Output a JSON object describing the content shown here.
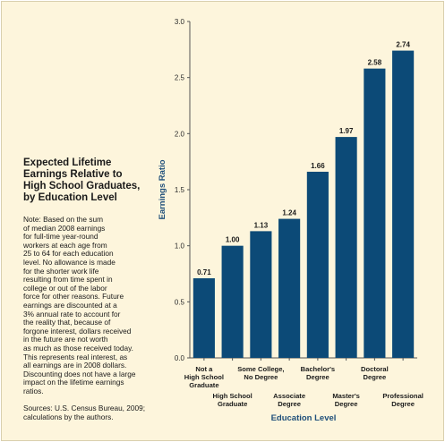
{
  "sidebar": {
    "title": "Expected Lifetime\nEarnings Relative to\nHigh School Graduates,\nby Education Level",
    "note": "Note: Based on the sum\nof median 2008 earnings\nfor full-time year-round\nworkers at each age from\n25 to 64 for each education\nlevel. No allowance is made\nfor the shorter work life\nresulting from time spent in\ncollege or out of the labor\nforce for other reasons. Future\nearnings are discounted at a\n3% annual rate to account for\nthe reality that, because of\nforgone interest, dollars received\nin the future are not worth\nas much as those received today.\nThis represents real interest, as\nall earnings are in 2008 dollars.\nDiscounting does not have a large\nimpact on the lifetime earnings\nratios.",
    "source": "Sources: U.S. Census Bureau, 2009;\ncalculations by the authors."
  },
  "chart_data": {
    "type": "bar",
    "xlabel": "Education Level",
    "ylabel": "Earnings Ratio",
    "ylim": [
      0,
      3.0
    ],
    "yticks": [
      "0.0",
      "0.5",
      "1.0",
      "1.5",
      "2.0",
      "2.5",
      "3.0"
    ],
    "categories": [
      "Not a\nHigh School\nGraduate",
      "High School\nGraduate",
      "Some College,\nNo Degree",
      "Associate\nDegree",
      "Bachelor's\nDegree",
      "Master's\nDegree",
      "Doctoral\nDegree",
      "Professional\nDegree"
    ],
    "values": [
      0.71,
      1.0,
      1.13,
      1.24,
      1.66,
      1.97,
      2.58,
      2.74
    ],
    "value_labels": [
      "0.71",
      "1.00",
      "1.13",
      "1.24",
      "1.66",
      "1.97",
      "2.58",
      "2.74"
    ],
    "bar_color": "#0c4a77",
    "grid": false
  }
}
